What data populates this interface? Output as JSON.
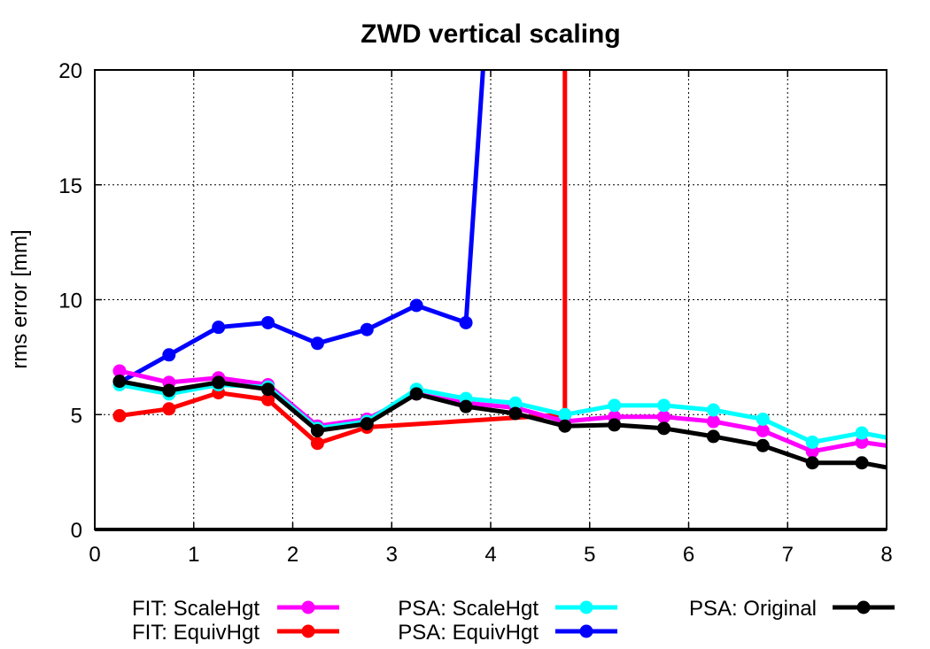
{
  "chart_data": {
    "type": "line",
    "title": "ZWD vertical scaling",
    "xlabel": "",
    "ylabel": "rms error [mm]",
    "xlim": [
      0,
      8
    ],
    "ylim": [
      0,
      20
    ],
    "x_ticks": [
      "0",
      "1",
      "2",
      "3",
      "4",
      "5",
      "6",
      "7",
      "8"
    ],
    "y_ticks": [
      "0",
      "5",
      "10",
      "15",
      "20"
    ],
    "grid": true,
    "legend_position": "bottom",
    "series": [
      {
        "name": "FIT: ScaleHgt",
        "color": "#ff00ff",
        "marker": "circle",
        "x": [
          0.25,
          0.75,
          1.25,
          1.75,
          2.25,
          2.75,
          3.25,
          3.75,
          4.25,
          4.75,
          5.25,
          5.75,
          6.25,
          6.75,
          7.25,
          7.75,
          8.25
        ],
        "y": [
          6.9,
          6.4,
          6.6,
          6.3,
          4.5,
          4.8,
          5.9,
          5.5,
          5.3,
          4.7,
          4.9,
          4.9,
          4.7,
          4.3,
          3.4,
          3.8,
          3.5
        ]
      },
      {
        "name": "FIT: EquivHgt",
        "color": "#ff0000",
        "marker": "circle",
        "x": [
          0.25,
          0.75,
          1.25,
          1.75,
          2.25,
          2.75,
          4.75,
          4.75
        ],
        "y": [
          4.95,
          5.25,
          5.95,
          5.65,
          3.75,
          4.45,
          5.0,
          20.5
        ]
      },
      {
        "name": "PSA: ScaleHgt",
        "color": "#00ffff",
        "marker": "circle",
        "x": [
          0.25,
          0.75,
          1.25,
          1.75,
          2.25,
          2.75,
          3.25,
          3.75,
          4.25,
          4.75,
          5.25,
          5.75,
          6.25,
          6.75,
          7.25,
          7.75,
          8.25
        ],
        "y": [
          6.3,
          5.9,
          6.3,
          6.2,
          4.4,
          4.7,
          6.1,
          5.7,
          5.5,
          5.0,
          5.4,
          5.4,
          5.2,
          4.8,
          3.8,
          4.2,
          3.8
        ]
      },
      {
        "name": "PSA: EquivHgt",
        "color": "#0000ff",
        "marker": "circle",
        "x": [
          0.25,
          0.75,
          1.25,
          1.75,
          2.25,
          2.75,
          3.25,
          3.75,
          3.93
        ],
        "y": [
          6.4,
          7.6,
          8.8,
          9.0,
          8.1,
          8.7,
          9.75,
          9.0,
          20.5
        ]
      },
      {
        "name": "PSA: Original",
        "color": "#000000",
        "marker": "circle",
        "x": [
          0.25,
          0.75,
          1.25,
          1.75,
          2.25,
          2.75,
          3.25,
          3.75,
          4.25,
          4.75,
          5.25,
          5.75,
          6.25,
          6.75,
          7.25,
          7.75,
          8.25
        ],
        "y": [
          6.45,
          6.05,
          6.4,
          6.1,
          4.3,
          4.6,
          5.9,
          5.35,
          5.05,
          4.5,
          4.55,
          4.4,
          4.05,
          3.65,
          2.9,
          2.9,
          2.5
        ]
      }
    ]
  }
}
